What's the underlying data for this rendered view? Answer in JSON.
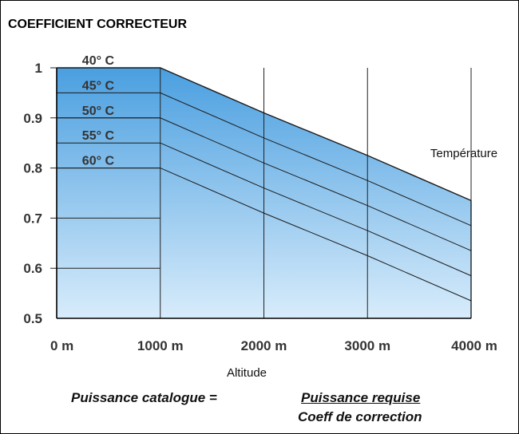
{
  "chart_data": {
    "type": "line",
    "title": "COEFFICIENT CORRECTEUR",
    "xlabel": "Altitude",
    "ylabel": "",
    "x": [
      0,
      1000,
      2000,
      3000,
      4000
    ],
    "x_tick_labels": [
      "0 m",
      "1000 m",
      "2000 m",
      "3000 m",
      "4000 m"
    ],
    "xlim": [
      0,
      4000
    ],
    "ylim": [
      0.5,
      1
    ],
    "y_ticks": [
      1,
      0.9,
      0.8,
      0.7,
      0.6,
      0.5
    ],
    "y_tick_labels": [
      "1",
      "0.9",
      "0.8",
      "0.7",
      "0.6",
      "0.5"
    ],
    "legend_title": "Température",
    "grid": true,
    "series": [
      {
        "name": "40° C",
        "values": [
          1.0,
          1.0,
          0.91,
          0.825,
          0.735
        ]
      },
      {
        "name": "45° C",
        "values": [
          0.95,
          0.95,
          0.86,
          0.775,
          0.685
        ]
      },
      {
        "name": "50° C",
        "values": [
          0.9,
          0.9,
          0.81,
          0.725,
          0.635
        ]
      },
      {
        "name": "55° C",
        "values": [
          0.85,
          0.85,
          0.76,
          0.675,
          0.585
        ]
      },
      {
        "name": "60° C",
        "values": [
          0.8,
          0.8,
          0.71,
          0.625,
          0.535
        ]
      }
    ],
    "fill_color_top": "#4a9fe0",
    "fill_color_bottom": "#d8ecfb"
  },
  "formula": {
    "lhs": "Puissance catalogue =",
    "numerator": "Puissance requise",
    "denominator": "Coeff de correction"
  }
}
